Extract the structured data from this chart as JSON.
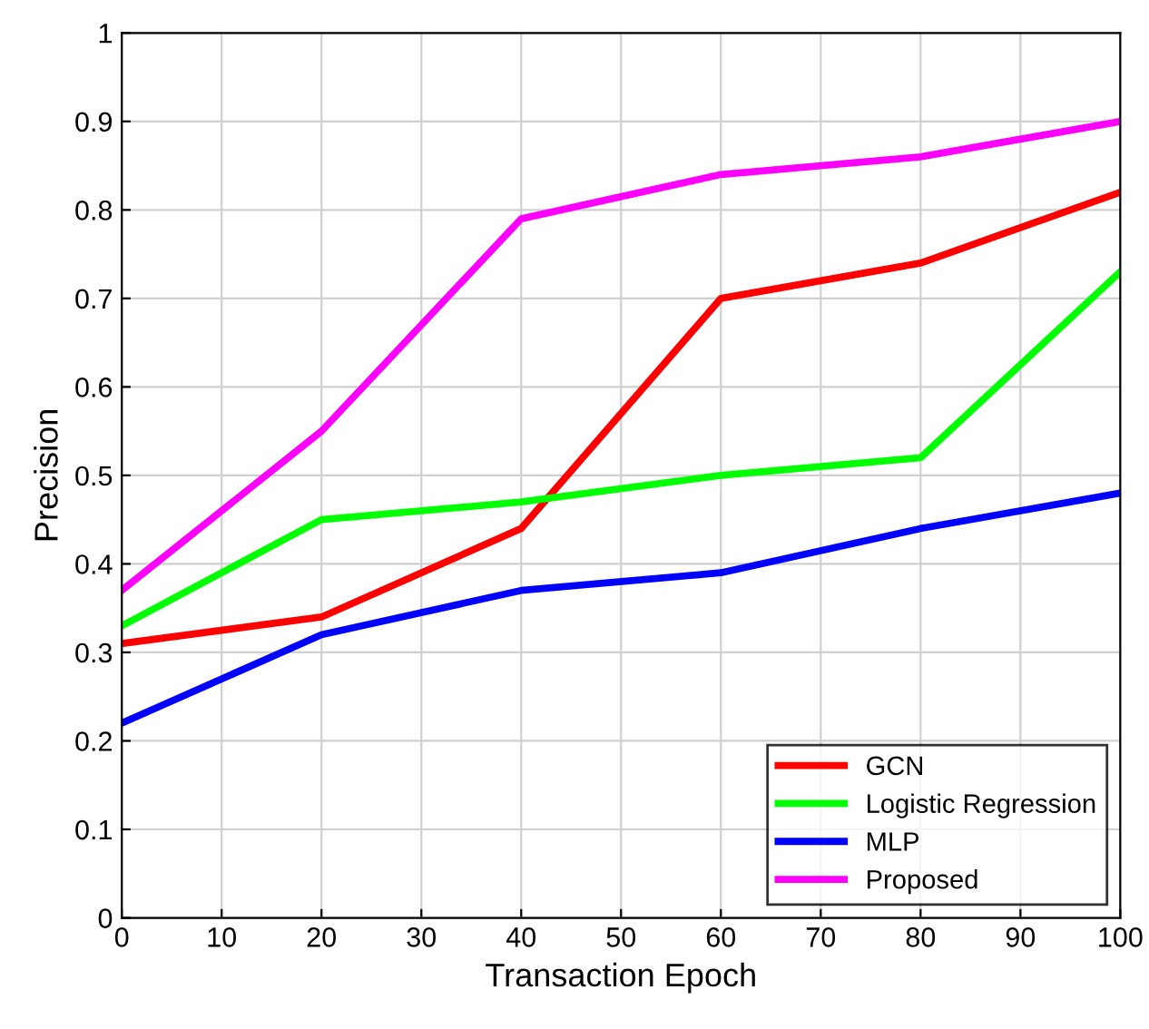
{
  "chart_data": {
    "type": "line",
    "xlabel": "Transaction Epoch",
    "ylabel": "Precision",
    "x": [
      0,
      20,
      40,
      60,
      80,
      100
    ],
    "series": [
      {
        "name": "GCN",
        "color": "#ff0000",
        "values": [
          0.31,
          0.34,
          0.44,
          0.7,
          0.74,
          0.82
        ]
      },
      {
        "name": "Logistic Regression",
        "color": "#00ff00",
        "values": [
          0.33,
          0.45,
          0.47,
          0.5,
          0.52,
          0.73
        ]
      },
      {
        "name": "MLP",
        "color": "#0000ff",
        "values": [
          0.22,
          0.32,
          0.37,
          0.39,
          0.44,
          0.48
        ]
      },
      {
        "name": "Proposed",
        "color": "#ff00ff",
        "values": [
          0.37,
          0.55,
          0.79,
          0.84,
          0.86,
          0.9
        ]
      }
    ],
    "xlim": [
      0,
      100
    ],
    "xticks": [
      0,
      10,
      20,
      30,
      40,
      50,
      60,
      70,
      80,
      90,
      100
    ],
    "ylim": [
      0,
      1
    ],
    "yticks": [
      0,
      0.1,
      0.2,
      0.3,
      0.4,
      0.5,
      0.6,
      0.7,
      0.8,
      0.9,
      1
    ],
    "grid": true,
    "legend": "lower right",
    "marker": "none",
    "line_style": "solid"
  }
}
